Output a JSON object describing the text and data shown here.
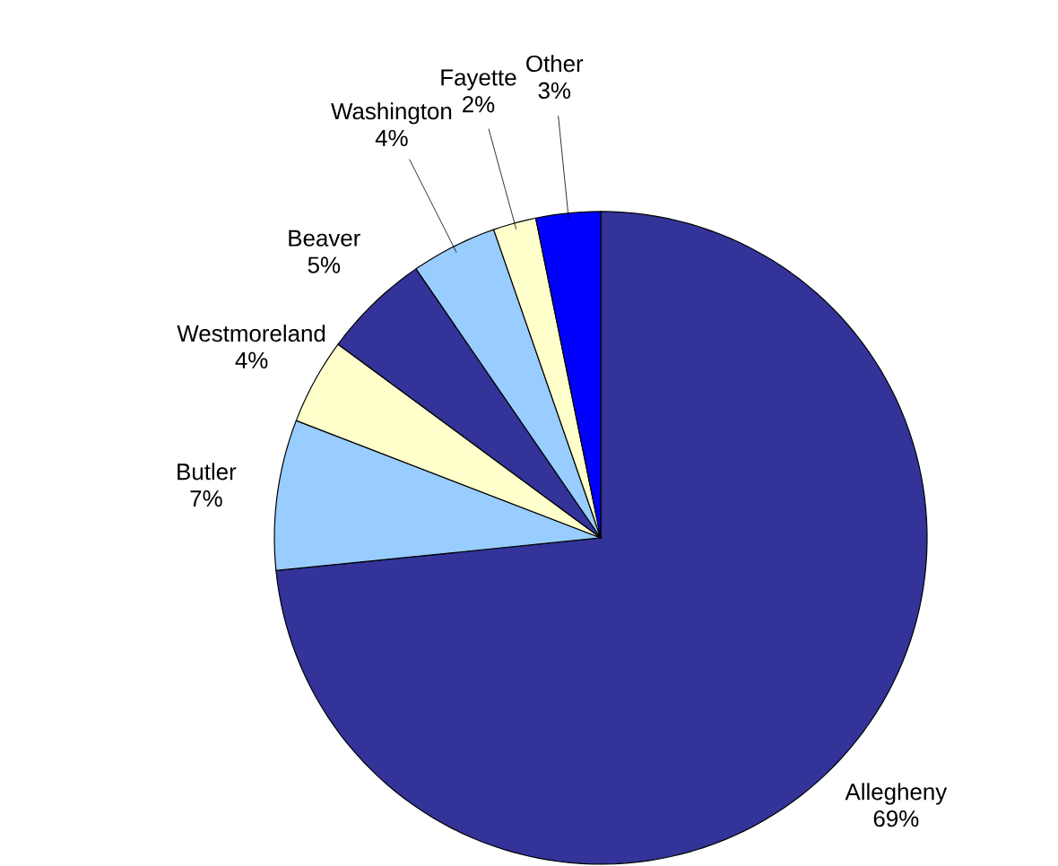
{
  "chart_data": {
    "type": "pie",
    "categories": [
      "Allegheny",
      "Butler",
      "Westmoreland",
      "Beaver",
      "Washington",
      "Fayette",
      "Other"
    ],
    "values": [
      69,
      7,
      4,
      5,
      4,
      2,
      3
    ],
    "value_labels": [
      "69%",
      "7%",
      "4%",
      "5%",
      "4%",
      "2%",
      "3%"
    ],
    "colors": [
      "#333399",
      "#99ccff",
      "#ffffcc",
      "#333399",
      "#99ccff",
      "#ffffcc",
      "#0000ff"
    ]
  }
}
